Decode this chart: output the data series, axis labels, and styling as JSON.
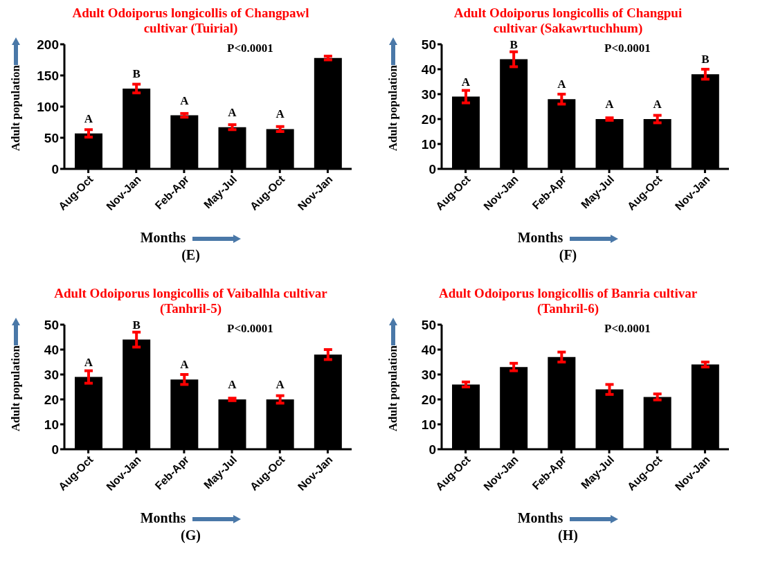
{
  "chart_data": [
    {
      "type": "bar",
      "title": "Adult Odoiporus longicollis of Changpawl cultivar (Tuirial)",
      "xlabel": "Months",
      "ylabel": "Adult population",
      "categories": [
        "Aug-Oct",
        "Nov-Jan",
        "Feb-Apr",
        "May-Jul",
        "Aug-Oct",
        "Nov-Jan"
      ],
      "values": [
        57,
        129,
        86,
        67,
        64,
        178
      ],
      "errors": [
        6,
        7,
        3,
        4,
        4,
        3
      ],
      "value_labels": [
        "A",
        "B",
        "A",
        "A",
        "A",
        null
      ],
      "color": "#000000",
      "ylim": [
        0,
        200
      ],
      "yticks": [
        0,
        50,
        100,
        150,
        200
      ],
      "annotations": [
        "P<0.0001",
        "(E)"
      ]
    },
    {
      "type": "bar",
      "title": "Adult Odoiporus longicollis of Changpui cultivar (Sakawrtuchhum)",
      "xlabel": "Months",
      "ylabel": "Adult population",
      "categories": [
        "Aug-Oct",
        "Nov-Jan",
        "Feb-Apr",
        "May-Jul",
        "Aug-Oct",
        "Nov-Jan"
      ],
      "values": [
        29,
        44,
        28,
        20,
        20,
        38
      ],
      "errors": [
        2.5,
        3,
        2,
        0.5,
        1.5,
        2
      ],
      "value_labels": [
        "A",
        "B",
        "A",
        "A",
        "A",
        "B"
      ],
      "color": "#000000",
      "ylim": [
        0,
        50
      ],
      "yticks": [
        0,
        10,
        20,
        30,
        40,
        50
      ],
      "annotations": [
        "P<0.0001",
        "(F)"
      ]
    },
    {
      "type": "bar",
      "title": "Adult Odoiporus longicollis of Vaibalhla cultivar (Tanhril-5)",
      "xlabel": "Months",
      "ylabel": "Adult population",
      "categories": [
        "Aug-Oct",
        "Nov-Jan",
        "Feb-Apr",
        "May-Jul",
        "Aug-Oct",
        "Nov-Jan"
      ],
      "values": [
        29,
        44,
        28,
        20,
        20,
        38
      ],
      "errors": [
        2.5,
        3,
        2,
        0.5,
        1.5,
        2
      ],
      "value_labels": [
        "A",
        "B",
        "A",
        "A",
        "A",
        null
      ],
      "color": "#000000",
      "ylim": [
        0,
        50
      ],
      "yticks": [
        0,
        10,
        20,
        30,
        40,
        50
      ],
      "annotations": [
        "P<0.0001",
        "(G)"
      ]
    },
    {
      "type": "bar",
      "title": "Adult Odoiporus longicollis of Banria cultivar (Tanhril-6)",
      "xlabel": "Months",
      "ylabel": "Adult population",
      "categories": [
        "Aug-Oct",
        "Nov-Jan",
        "Feb-Apr",
        "May-Jul",
        "Aug-Oct",
        "Nov-Jan"
      ],
      "values": [
        26,
        33,
        37,
        24,
        21,
        34
      ],
      "errors": [
        1,
        1.5,
        2,
        2,
        1.2,
        1
      ],
      "color": "#000000",
      "ylim": [
        0,
        50
      ],
      "yticks": [
        0,
        10,
        20,
        30,
        40,
        50
      ],
      "annotations": [
        "P<0.0001",
        "(H)"
      ]
    }
  ]
}
